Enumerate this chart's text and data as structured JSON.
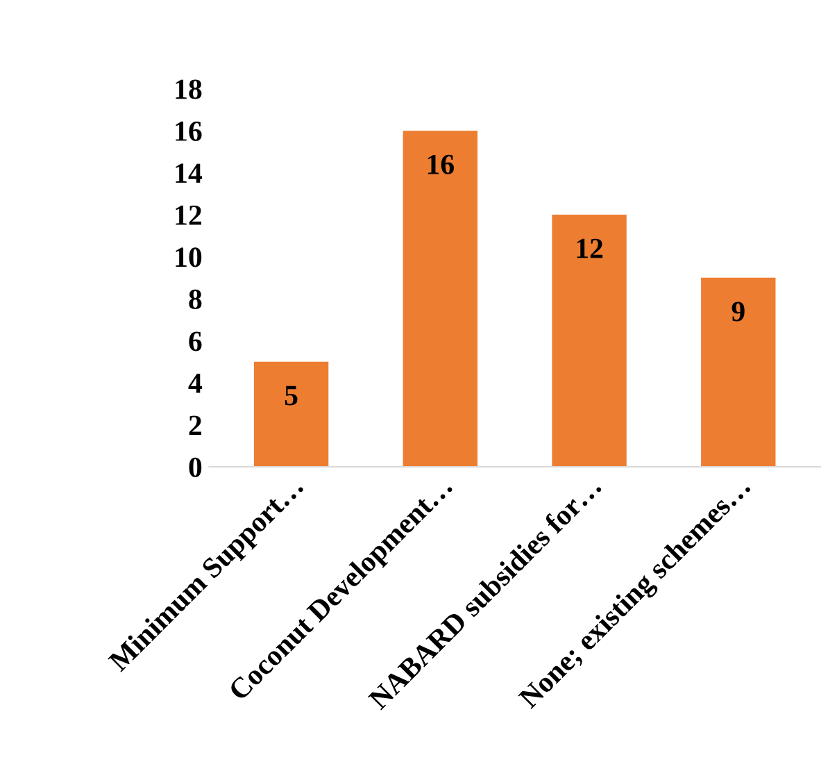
{
  "chart_data": {
    "type": "bar",
    "categories": [
      "Minimum Support…",
      "Coconut Development…",
      "NABARD subsidies for…",
      "None; existing schemes…"
    ],
    "values": [
      5,
      16,
      12,
      9
    ],
    "color": "#ed7d31",
    "ylim": [
      0,
      18
    ],
    "yticks": [
      0,
      2,
      4,
      6,
      8,
      10,
      12,
      14,
      16,
      18
    ],
    "grid": false,
    "data_labels": true
  }
}
